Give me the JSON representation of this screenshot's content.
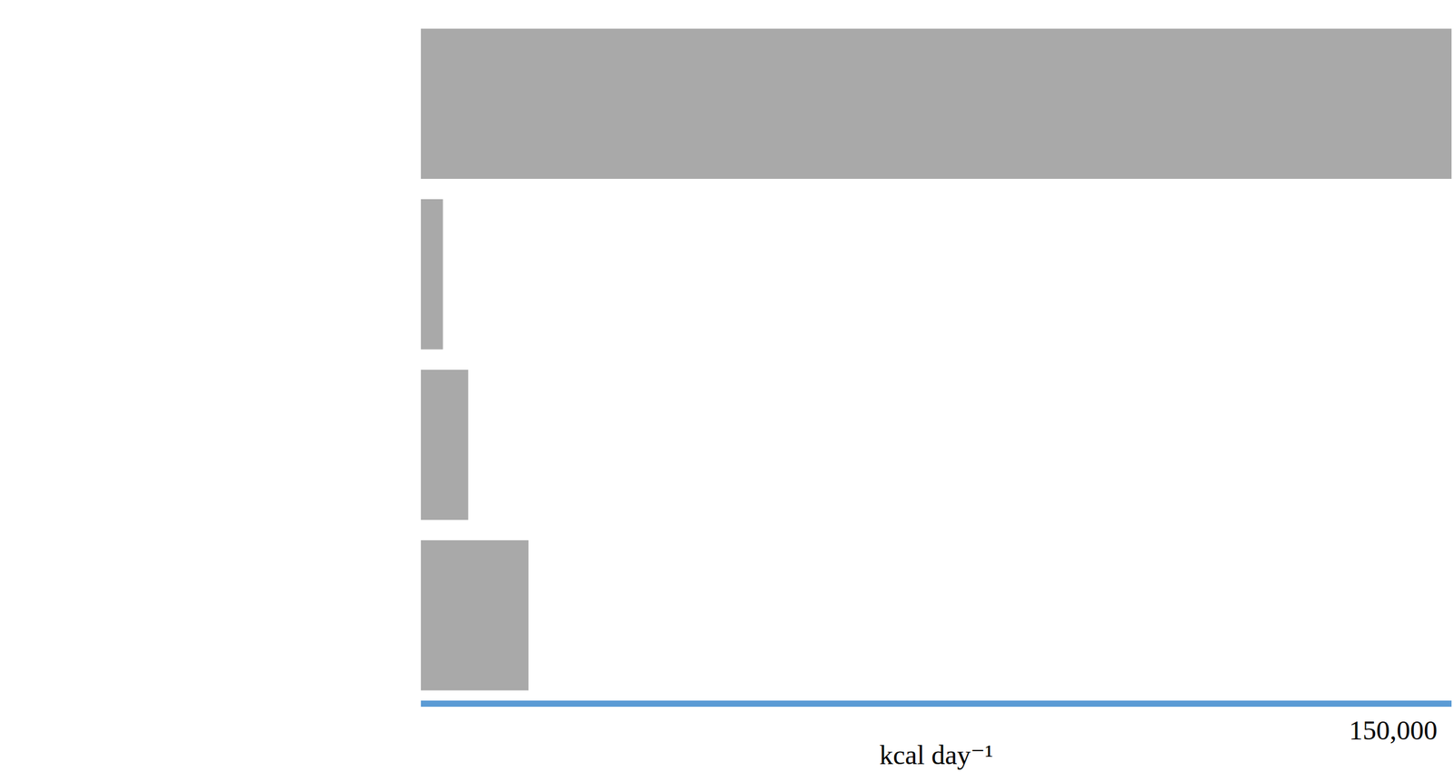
{
  "chart_data": {
    "type": "bar",
    "orientation": "horizontal",
    "categories": [
      null,
      null,
      null,
      null
    ],
    "values": [
      159000,
      3400,
      7300,
      16600
    ],
    "color": "#a9a9a9",
    "xlabel": "kcal day⁻¹",
    "xlim": [
      0,
      159000
    ],
    "xticks": [
      {
        "value": 150000,
        "label": "150,000"
      }
    ],
    "grid": false,
    "tick_labels": "x"
  }
}
